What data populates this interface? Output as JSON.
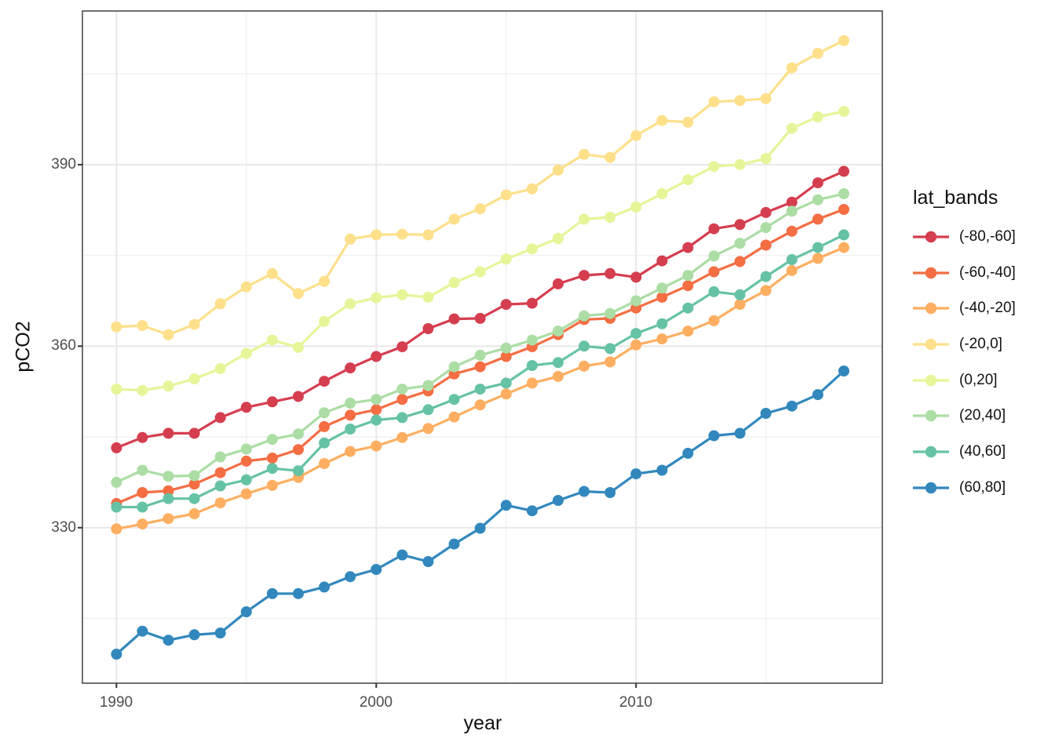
{
  "figure": {
    "background": "#ffffff",
    "panel_border_color": "#333333",
    "grid_major_color": "#e8e8e8",
    "grid_minor_color": "#f2f2f2",
    "tick_color": "#333333",
    "tick_label_color": "#4d4d4d",
    "axis_title_color": "#111111"
  },
  "chart_data": {
    "type": "line",
    "title": "",
    "xlabel": "year",
    "ylabel": "pCO2",
    "legend_title": "lat_bands",
    "legend_position": "right",
    "grid": true,
    "xlim": [
      1988.69,
      2019.48
    ],
    "ylim": [
      304.3,
      415.4
    ],
    "x_ticks": [
      1990,
      2000,
      2010
    ],
    "x_tick_labels": [
      "1990",
      "2000",
      "2010"
    ],
    "x_minor_ticks": [
      1995,
      2005,
      2015
    ],
    "y_ticks": [
      330,
      360,
      390
    ],
    "y_tick_labels": [
      "330",
      "360",
      "390"
    ],
    "y_minor_ticks": [
      315,
      345,
      375,
      405
    ],
    "x": [
      1990,
      1991,
      1992,
      1993,
      1994,
      1995,
      1996,
      1997,
      1998,
      1999,
      2000,
      2001,
      2002,
      2003,
      2004,
      2005,
      2006,
      2007,
      2008,
      2009,
      2010,
      2011,
      2012,
      2013,
      2014,
      2015,
      2016,
      2017,
      2018
    ],
    "series": [
      {
        "name": "(-80,-60]",
        "color": "#d53e4f",
        "values": [
          343.2,
          344.9,
          345.6,
          345.6,
          348.2,
          349.9,
          350.8,
          351.7,
          354.2,
          356.4,
          358.3,
          359.9,
          362.9,
          364.5,
          364.6,
          366.9,
          367.1,
          370.3,
          371.7,
          372.0,
          371.4,
          374.1,
          376.3,
          379.4,
          380.1,
          382.1,
          383.8,
          387.0,
          388.9
        ]
      },
      {
        "name": "(-60,-40]",
        "color": "#f46d43",
        "values": [
          334.0,
          335.8,
          336.1,
          337.2,
          339.1,
          341.0,
          341.5,
          342.9,
          346.7,
          348.6,
          349.5,
          351.2,
          352.6,
          355.4,
          356.6,
          358.3,
          359.9,
          361.9,
          364.4,
          364.6,
          366.3,
          368.1,
          370.0,
          372.3,
          374.0,
          376.7,
          379.0,
          381.0,
          382.6
        ]
      },
      {
        "name": "(-40,-20]",
        "color": "#fdae61",
        "values": [
          329.8,
          330.6,
          331.5,
          332.3,
          334.1,
          335.6,
          337.0,
          338.3,
          340.6,
          342.6,
          343.5,
          344.9,
          346.4,
          348.3,
          350.3,
          352.1,
          353.9,
          355.0,
          356.7,
          357.4,
          360.2,
          361.2,
          362.5,
          364.2,
          366.9,
          369.2,
          372.5,
          374.5,
          376.3
        ]
      },
      {
        "name": "(-20,0]",
        "color": "#fee08b",
        "values": [
          363.2,
          363.4,
          361.9,
          363.6,
          367.0,
          369.8,
          372.0,
          368.7,
          370.7,
          377.7,
          378.4,
          378.5,
          378.4,
          381.0,
          382.7,
          385.0,
          386.0,
          389.1,
          391.7,
          391.2,
          394.8,
          397.3,
          397.0,
          400.4,
          400.6,
          400.9,
          406.0,
          408.4,
          410.5
        ]
      },
      {
        "name": "(0,20]",
        "color": "#e6f598",
        "values": [
          352.9,
          352.7,
          353.4,
          354.6,
          356.3,
          358.8,
          361.0,
          359.8,
          364.1,
          367.0,
          368.0,
          368.5,
          368.1,
          370.5,
          372.3,
          374.4,
          376.1,
          377.8,
          381.0,
          381.3,
          383.0,
          385.2,
          387.5,
          389.7,
          390.0,
          391.0,
          396.0,
          397.9,
          398.8
        ]
      },
      {
        "name": "(20,40]",
        "color": "#abdda4",
        "values": [
          337.5,
          339.5,
          338.5,
          338.6,
          341.7,
          343.0,
          344.6,
          345.5,
          349.0,
          350.6,
          351.2,
          352.9,
          353.5,
          356.6,
          358.5,
          359.7,
          361.0,
          362.5,
          365.0,
          365.4,
          367.5,
          369.6,
          371.7,
          374.9,
          377.0,
          379.6,
          382.3,
          384.2,
          385.2
        ]
      },
      {
        "name": "(40,60]",
        "color": "#66c2a5",
        "values": [
          333.4,
          333.4,
          334.8,
          334.8,
          336.9,
          337.9,
          339.8,
          339.4,
          344.0,
          346.3,
          347.8,
          348.2,
          349.5,
          351.2,
          352.9,
          353.9,
          356.8,
          357.3,
          360.0,
          359.6,
          362.1,
          363.7,
          366.3,
          369.0,
          368.5,
          371.5,
          374.3,
          376.3,
          378.4
        ]
      },
      {
        "name": "(60,80]",
        "color": "#3288bd",
        "values": [
          309.1,
          312.9,
          311.4,
          312.3,
          312.6,
          316.1,
          319.1,
          319.1,
          320.2,
          321.9,
          323.1,
          325.5,
          324.4,
          327.3,
          329.9,
          333.7,
          332.8,
          334.5,
          336.0,
          335.8,
          338.9,
          339.5,
          342.3,
          345.2,
          345.6,
          348.9,
          350.1,
          352.0,
          355.9
        ]
      }
    ]
  }
}
